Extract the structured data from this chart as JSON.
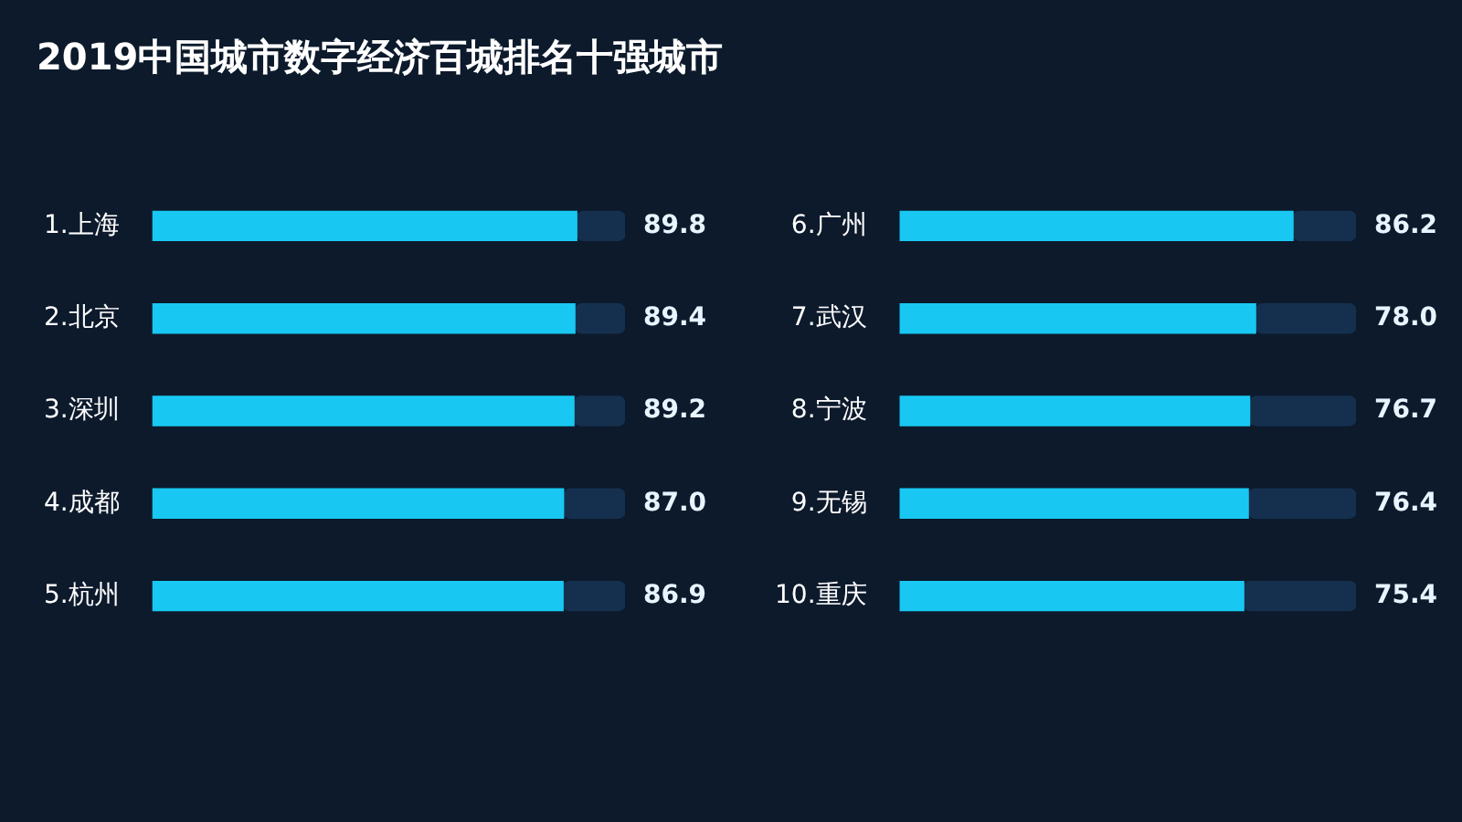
{
  "chart_data": [
    {
      "type": "bar",
      "orientation": "horizontal",
      "stacked": true,
      "title": "2019中国城市数字经济百城排名十强城市",
      "categories": [
        "1.上海",
        "2.北京",
        "3.深圳",
        "4.成都",
        "5.杭州"
      ],
      "series": [
        {
          "color": "#18c8f2",
          "values": [
            89.8,
            89.4,
            89.2,
            87.0,
            86.9
          ],
          "value_labels": [
            "89.8",
            "89.4",
            "89.2",
            "87.0",
            "86.9"
          ]
        },
        {
          "color": "#15304e",
          "values": [
            10.2,
            10.6,
            10.8,
            13.0,
            13.1
          ]
        }
      ],
      "xlim": [
        0,
        100
      ],
      "tick_labels": "y",
      "legend": false
    },
    {
      "type": "bar",
      "orientation": "horizontal",
      "stacked": true,
      "categories": [
        "6.广州",
        "7.武汉",
        "8.宁波",
        "9.无锡",
        "10.重庆"
      ],
      "series": [
        {
          "color": "#18c8f2",
          "values": [
            86.2,
            78.0,
            76.7,
            76.4,
            75.4
          ],
          "value_labels": [
            "86.2",
            "78.0",
            "76.7",
            "76.4",
            "75.4"
          ]
        },
        {
          "color": "#15304e",
          "values": [
            13.8,
            22.0,
            23.3,
            23.6,
            24.6
          ]
        }
      ],
      "xlim": [
        0,
        100
      ],
      "tick_labels": "y",
      "legend": false
    }
  ]
}
